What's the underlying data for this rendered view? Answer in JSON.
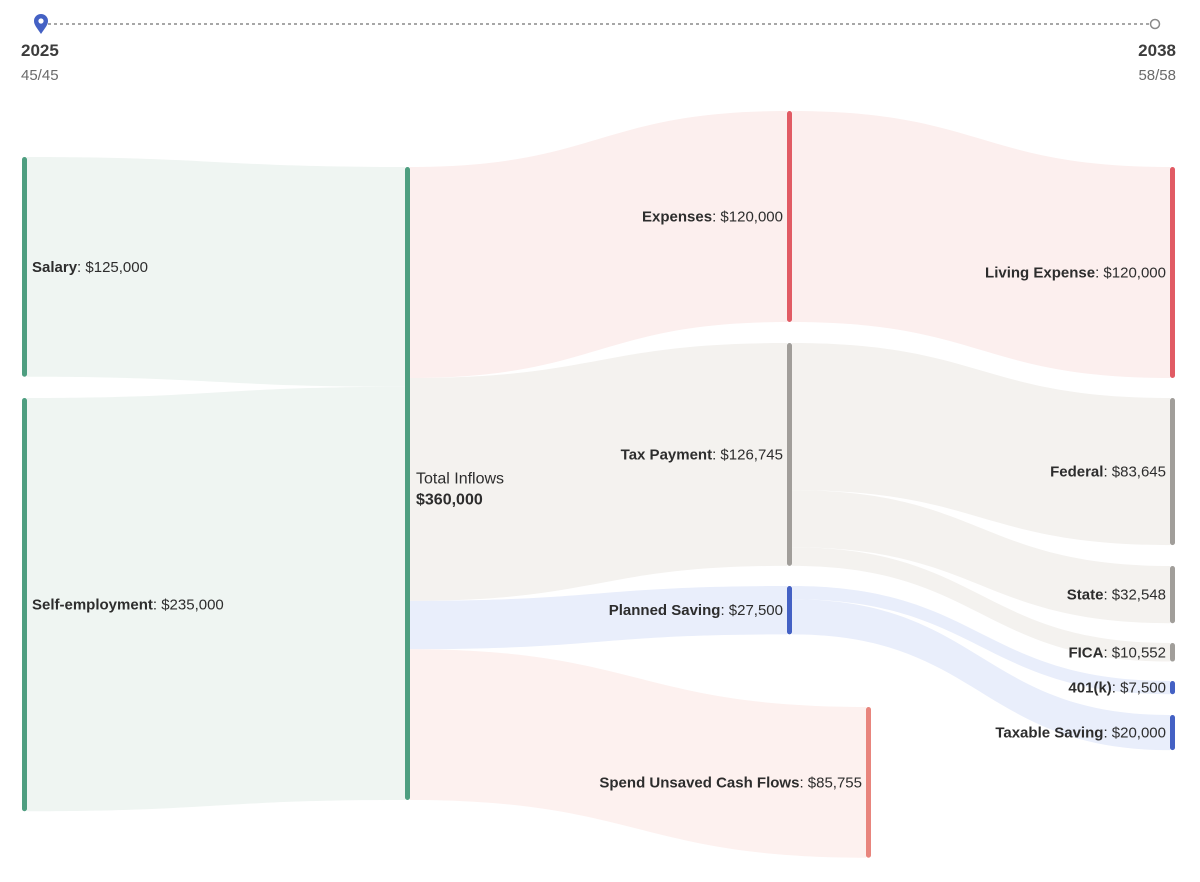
{
  "timeline": {
    "start": {
      "year": "2025",
      "age": "45/45"
    },
    "end": {
      "year": "2038",
      "age": "58/58"
    },
    "marker_icon": "location-pin-icon",
    "end_icon": "circle-marker-icon"
  },
  "colors": {
    "income": "#4e9e80",
    "income_flow": "#eff5f2",
    "expense": "#e15b64",
    "expense_flow": "#fcefee",
    "tax": "#a19e9a",
    "tax_flow": "#f4f2ef",
    "saving": "#4461c4",
    "saving_flow": "#e9eefb",
    "spend": "#e8857d",
    "spend_flow": "#fdf1ef"
  },
  "chart_data": {
    "type": "sankey",
    "title": "",
    "nodes": [
      {
        "id": "salary",
        "name": "Salary",
        "value": 125000,
        "value_text": "$125,000",
        "column": 0,
        "color": "income"
      },
      {
        "id": "self_employment",
        "name": "Self-employment",
        "value": 235000,
        "value_text": "$235,000",
        "column": 0,
        "color": "income"
      },
      {
        "id": "total_inflows",
        "name": "Total Inflows",
        "value": 360000,
        "value_text": "$360,000",
        "column": 1,
        "color": "income"
      },
      {
        "id": "expenses",
        "name": "Expenses",
        "value": 120000,
        "value_text": "$120,000",
        "column": 2,
        "color": "expense"
      },
      {
        "id": "tax_payment",
        "name": "Tax Payment",
        "value": 126745,
        "value_text": "$126,745",
        "column": 2,
        "color": "tax"
      },
      {
        "id": "planned_saving",
        "name": "Planned Saving",
        "value": 27500,
        "value_text": "$27,500",
        "column": 2,
        "color": "saving"
      },
      {
        "id": "spend_unsaved",
        "name": "Spend Unsaved Cash Flows",
        "value": 85755,
        "value_text": "$85,755",
        "column": 2,
        "color": "spend"
      },
      {
        "id": "living_expense",
        "name": "Living Expense",
        "value": 120000,
        "value_text": "$120,000",
        "column": 3,
        "color": "expense"
      },
      {
        "id": "federal",
        "name": "Federal",
        "value": 83645,
        "value_text": "$83,645",
        "column": 3,
        "color": "tax"
      },
      {
        "id": "state",
        "name": "State",
        "value": 32548,
        "value_text": "$32,548",
        "column": 3,
        "color": "tax"
      },
      {
        "id": "fica",
        "name": "FICA",
        "value": 10552,
        "value_text": "$10,552",
        "column": 3,
        "color": "tax"
      },
      {
        "id": "k401",
        "name": "401(k)",
        "value": 7500,
        "value_text": "$7,500",
        "column": 3,
        "color": "saving"
      },
      {
        "id": "taxable_saving",
        "name": "Taxable Saving",
        "value": 20000,
        "value_text": "$20,000",
        "column": 3,
        "color": "saving"
      }
    ],
    "links": [
      {
        "source": "salary",
        "target": "total_inflows",
        "value": 125000,
        "color": "income_flow"
      },
      {
        "source": "self_employment",
        "target": "total_inflows",
        "value": 235000,
        "color": "income_flow"
      },
      {
        "source": "total_inflows",
        "target": "expenses",
        "value": 120000,
        "color": "expense_flow"
      },
      {
        "source": "total_inflows",
        "target": "tax_payment",
        "value": 126745,
        "color": "tax_flow"
      },
      {
        "source": "total_inflows",
        "target": "planned_saving",
        "value": 27500,
        "color": "saving_flow"
      },
      {
        "source": "total_inflows",
        "target": "spend_unsaved",
        "value": 85755,
        "color": "spend_flow"
      },
      {
        "source": "expenses",
        "target": "living_expense",
        "value": 120000,
        "color": "expense_flow"
      },
      {
        "source": "tax_payment",
        "target": "federal",
        "value": 83645,
        "color": "tax_flow"
      },
      {
        "source": "tax_payment",
        "target": "state",
        "value": 32548,
        "color": "tax_flow"
      },
      {
        "source": "tax_payment",
        "target": "fica",
        "value": 10552,
        "color": "tax_flow"
      },
      {
        "source": "planned_saving",
        "target": "k401",
        "value": 7500,
        "color": "saving_flow"
      },
      {
        "source": "planned_saving",
        "target": "taxable_saving",
        "value": 20000,
        "color": "saving_flow"
      }
    ]
  }
}
